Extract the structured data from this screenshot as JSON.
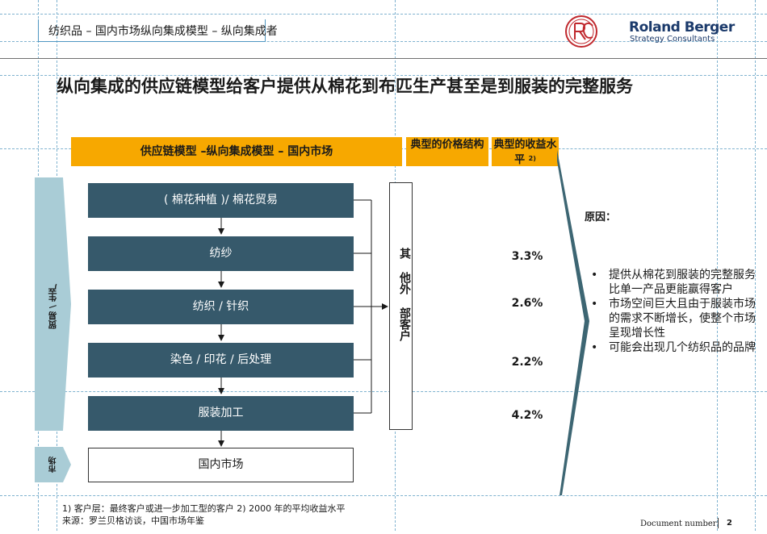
{
  "breadcrumb": "纺织品 – 国内市场纵向集成模型 – 纵向集成者",
  "logo": {
    "name": "Roland Berger",
    "tagline": "Strategy Consultants",
    "brand_color": "#1b3a6b",
    "seal_color": "#c0282d"
  },
  "title": "纵向集成的供应链模型给客户提供从棉花到布匹生产甚至是到服装的完整服务",
  "headers": {
    "model": "供应链模型 –纵向集成模型 – 国内市场",
    "price": "典型的价格结构",
    "margin": "典型的收益水平",
    "margin_note": "2)"
  },
  "side_labels": {
    "production": "贸易 \\ 生产",
    "market": "市场"
  },
  "steps": [
    "( 棉花种植 )/ 棉花贸易",
    "纺纱",
    "纺织 / 针织",
    "染色 / 印花 / 后处理",
    "服装加工"
  ],
  "domestic_market": "国内市场",
  "other_customers": "其 他外 部客户",
  "margins": [
    "3.3%",
    "2.6%",
    "2.2%",
    "4.2%"
  ],
  "reasons": {
    "title": "原因：",
    "items": [
      "提供从棉花到服装的完整服务比单一产品更能赢得客户",
      "市场空间巨大且由于服装市场的需求不断增长，使整个市场呈现增长性",
      "可能会出现几个纺织品的品牌"
    ]
  },
  "footnotes": {
    "line1": "1) 客户层：最终客户或进一步加工型的客户   2) 2000 年的平均收益水平",
    "line2": "来源：罗兰贝格访谈，中国市场年鉴"
  },
  "footer": {
    "document_number": "Document number",
    "page": "2"
  },
  "colors": {
    "accent": "#f7a800",
    "step_fill": "#36596b",
    "chevron": "#3d6673",
    "side_arrow": "#a9ccd6"
  }
}
